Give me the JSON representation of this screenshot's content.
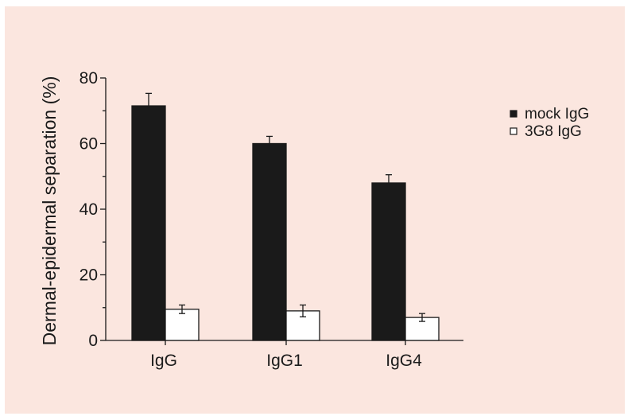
{
  "chart_data": {
    "type": "bar",
    "title": "",
    "xlabel": "",
    "ylabel": "Dermal-epidermal separation (%)",
    "ylim": [
      0,
      80
    ],
    "yticks": [
      0,
      20,
      40,
      60,
      80
    ],
    "categories": [
      "IgG",
      "IgG1",
      "IgG4"
    ],
    "series": [
      {
        "name": "mock IgG",
        "values": [
          71.5,
          60,
          48
        ],
        "errors": [
          3.8,
          2.2,
          2.5
        ],
        "fill": "#1a1a1a"
      },
      {
        "name": "3G8 IgG",
        "values": [
          9.5,
          9,
          7
        ],
        "errors": [
          1.3,
          1.8,
          1.2
        ],
        "fill": "#ffffff"
      }
    ],
    "legend": "right",
    "grid": false,
    "colors": {
      "background": "#fbe6df",
      "bar_dark": "#1a1a1a",
      "bar_light": "#ffffff"
    }
  }
}
